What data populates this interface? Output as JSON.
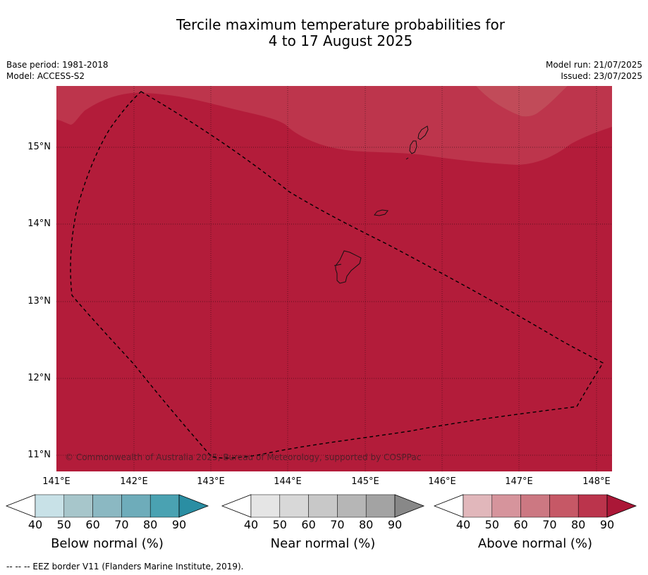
{
  "title": {
    "line1": "Tercile maximum temperature probabilities for",
    "line2": "4 to 17 August 2025"
  },
  "meta": {
    "base_period": "Base period: 1981-2018",
    "model": "Model: ACCESS-S2",
    "model_run": "Model run: 21/07/2025",
    "issued": "Issued: 23/07/2025"
  },
  "map": {
    "lat_labels": [
      "15°N",
      "14°N",
      "13°N",
      "12°N",
      "11°N"
    ],
    "lon_labels": [
      "141°E",
      "142°E",
      "143°E",
      "144°E",
      "145°E",
      "146°E",
      "147°E",
      "148°E"
    ],
    "copyright": "© Commonwealth of Australia 2025, Bureau of Meteorology, supported by COSPPac",
    "colors": {
      "above_90": "#b31c3a",
      "above_80": "#bd354c"
    }
  },
  "colorbars": [
    {
      "title": "Below normal (%)",
      "ticks": [
        "40",
        "50",
        "60",
        "70",
        "80",
        "90"
      ],
      "colors": [
        "#ffffff",
        "#c8e1e7",
        "#a7c6cb",
        "#8bb8c2",
        "#6eacba",
        "#4aa2b2",
        "#2a8ea3"
      ]
    },
    {
      "title": "Near normal (%)",
      "ticks": [
        "40",
        "50",
        "60",
        "70",
        "80",
        "90"
      ],
      "colors": [
        "#ffffff",
        "#e5e5e5",
        "#d8d8d8",
        "#c8c8c8",
        "#b6b6b6",
        "#a3a3a3",
        "#888888"
      ]
    },
    {
      "title": "Above normal (%)",
      "ticks": [
        "40",
        "50",
        "60",
        "70",
        "80",
        "90"
      ],
      "colors": [
        "#ffffff",
        "#e1b7bb",
        "#d6949c",
        "#cc7882",
        "#c65866",
        "#bb344c",
        "#ab1737"
      ]
    }
  ],
  "footnote": "--  --  -- EEZ border V11 (Flanders Marine Institute, 2019)."
}
